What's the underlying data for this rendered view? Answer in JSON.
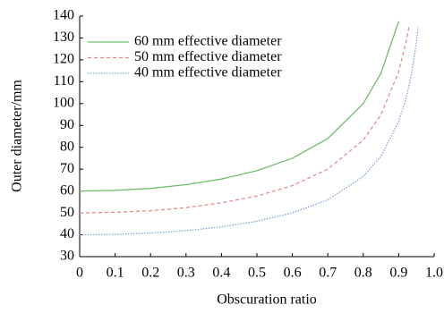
{
  "chart_data": {
    "type": "line",
    "xlabel": "Obscuration ratio",
    "ylabel": "Outer diameter/mm",
    "x": [
      0,
      0.1,
      0.2,
      0.3,
      0.4,
      0.5,
      0.6,
      0.7,
      0.8,
      0.85,
      0.9,
      0.92,
      0.93,
      0.94,
      0.95,
      0.955
    ],
    "series": [
      {
        "name": "60 mm effective diameter",
        "color": "#6cbf6c",
        "style": "solid",
        "values": [
          60,
          60.3,
          61.2,
          62.9,
          65.5,
          69.3,
          75,
          84,
          100,
          113.9,
          137.6,
          null,
          null,
          null,
          null,
          null
        ]
      },
      {
        "name": "50 mm effective diameter",
        "color": "#e88a8a",
        "style": "dashed",
        "values": [
          50,
          50.3,
          51,
          52.4,
          54.6,
          57.7,
          62.5,
          70,
          83.3,
          94.9,
          114.7,
          127.6,
          136,
          null,
          null,
          null
        ]
      },
      {
        "name": "40 mm effective diameter",
        "color": "#7fa3d8",
        "style": "dotted",
        "values": [
          40,
          40.2,
          40.8,
          41.9,
          43.6,
          46.2,
          50,
          56,
          66.7,
          75.9,
          91.8,
          102,
          108.8,
          117.3,
          128.1,
          134.9
        ]
      }
    ],
    "xlim": [
      0,
      1.0
    ],
    "xticks": [
      0,
      0.1,
      0.2,
      0.3,
      0.4,
      0.5,
      0.6,
      0.7,
      0.8,
      0.9,
      {
        "value": 1.0,
        "label": "1.0"
      }
    ],
    "ylim": [
      30,
      140
    ],
    "yticks": [
      30,
      40,
      50,
      60,
      70,
      80,
      90,
      100,
      110,
      120,
      130,
      140
    ],
    "legend": "upper-left"
  }
}
